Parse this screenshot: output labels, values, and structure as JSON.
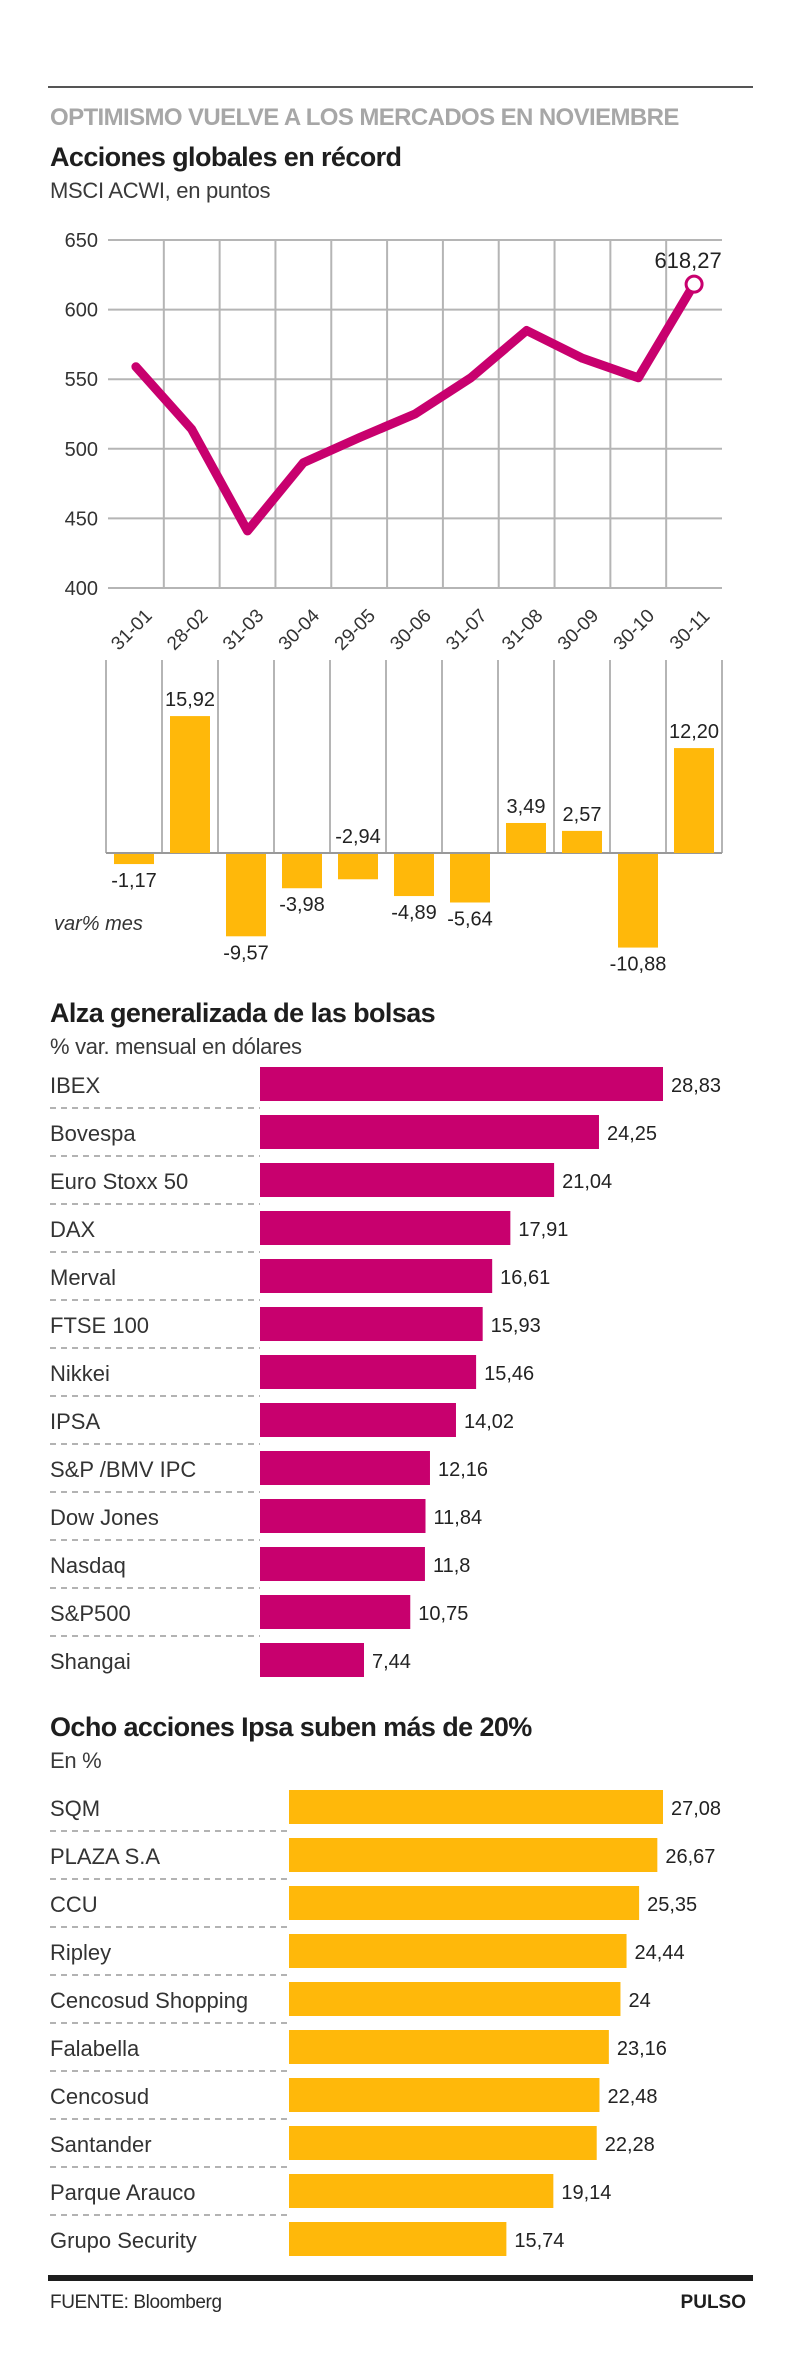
{
  "header": {
    "kicker": "OPTIMISMO VUELVE A LOS MERCADOS EN NOVIEMBRE"
  },
  "colors": {
    "magenta": "#c8006e",
    "amber": "#ffb80a",
    "grid": "#b5b5b5",
    "text": "#2b2b2b"
  },
  "chart_data": [
    {
      "type": "line",
      "title": "Acciones globales en récord",
      "subtitle": "MSCI ACWI, en puntos",
      "xlabel": "",
      "ylabel": "",
      "x": [
        "31-01",
        "28-02",
        "31-03",
        "30-04",
        "29-05",
        "30-06",
        "31-07",
        "31-08",
        "30-09",
        "30-10",
        "30-11"
      ],
      "series": [
        {
          "name": "MSCI ACWI",
          "values": [
            559,
            514,
            441,
            490,
            508,
            525,
            551,
            585,
            565,
            551,
            618.27
          ]
        }
      ],
      "ylim": [
        400,
        650
      ],
      "yticks": [
        650,
        600,
        550,
        500,
        450,
        400
      ],
      "grid": true,
      "annotation": {
        "label": "618,27",
        "index": 10
      }
    },
    {
      "type": "bar",
      "title": "",
      "axis_label": "var% mes",
      "categories": [
        "31-01",
        "28-02",
        "31-03",
        "30-04",
        "29-05",
        "30-06",
        "31-07",
        "31-08",
        "30-09",
        "30-10",
        "30-11"
      ],
      "values": [
        -1.17,
        15.92,
        -9.57,
        -3.98,
        -2.94,
        -4.89,
        -5.64,
        3.49,
        2.57,
        -10.88,
        12.2
      ],
      "labels": [
        "-1,17",
        "15,92",
        "-9,57",
        "-3,98",
        "-2,94",
        "-4,89",
        "-5,64",
        "3,49",
        "2,57",
        "-10,88",
        "12,20"
      ],
      "ylim": [
        -12,
        16
      ],
      "grid": true
    },
    {
      "type": "bar",
      "orientation": "horizontal",
      "title": "Alza generalizada de las bolsas",
      "subtitle": "% var. mensual en dólares",
      "categories": [
        "IBEX",
        "Bovespa",
        "Euro Stoxx 50",
        "DAX",
        "Merval",
        "FTSE 100",
        "Nikkei",
        "IPSA",
        "S&P /BMV IPC",
        "Dow Jones",
        "Nasdaq",
        "S&P500",
        "Shangai"
      ],
      "values": [
        28.83,
        24.25,
        21.04,
        17.91,
        16.61,
        15.93,
        15.46,
        14.02,
        12.16,
        11.84,
        11.8,
        10.75,
        7.44
      ],
      "labels": [
        "28,83",
        "24,25",
        "21,04",
        "17,91",
        "16,61",
        "15,93",
        "15,46",
        "14,02",
        "12,16",
        "11,84",
        "11,8",
        "10,75",
        "7,44"
      ],
      "xlim": [
        0,
        28.83
      ]
    },
    {
      "type": "bar",
      "orientation": "horizontal",
      "title": "Ocho acciones Ipsa suben más de 20%",
      "subtitle": "En %",
      "categories": [
        "SQM",
        "PLAZA S.A",
        "CCU",
        "Ripley",
        "Cencosud Shopping",
        "Falabella",
        "Cencosud",
        "Santander",
        "Parque Arauco",
        "Grupo Security"
      ],
      "values": [
        27.08,
        26.67,
        25.35,
        24.44,
        24,
        23.16,
        22.48,
        22.28,
        19.14,
        15.74
      ],
      "labels": [
        "27,08",
        "26,67",
        "25,35",
        "24,44",
        "24",
        "23,16",
        "22,48",
        "22,28",
        "19,14",
        "15,74"
      ],
      "xlim": [
        0,
        27.08
      ]
    }
  ],
  "footer": {
    "source": "FUENTE: Bloomberg",
    "brand": "PULSO"
  }
}
